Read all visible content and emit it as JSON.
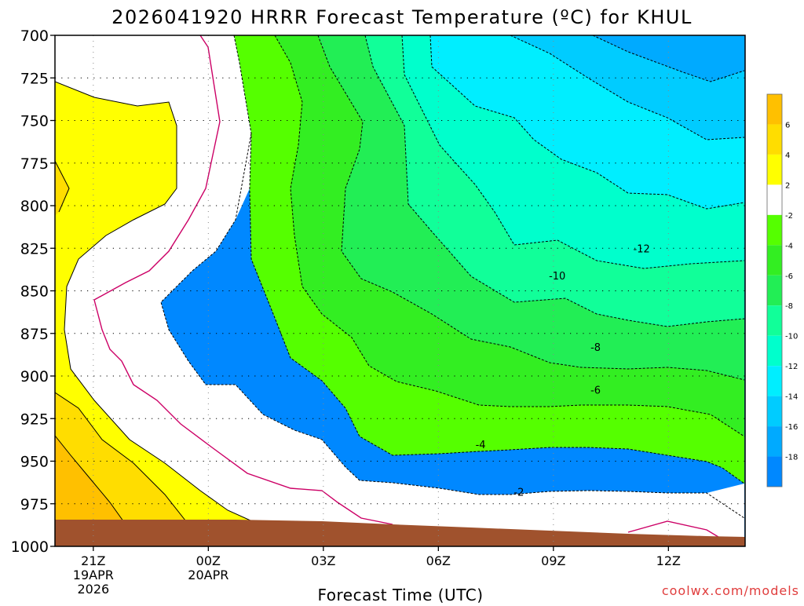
{
  "chart_data": {
    "type": "filled-contour",
    "title": "2026041920 HRRR Forecast Temperature (ºC) for KHUL",
    "xlabel": "Forecast Time (UTC)",
    "ylabel": "",
    "x_ticks": [
      {
        "label": "21Z",
        "sub": [
          "19APR",
          "2026"
        ],
        "hour": 1
      },
      {
        "label": "00Z",
        "sub": [
          "20APR"
        ],
        "hour": 4
      },
      {
        "label": "03Z",
        "sub": [],
        "hour": 7
      },
      {
        "label": "06Z",
        "sub": [],
        "hour": 10
      },
      {
        "label": "09Z",
        "sub": [],
        "hour": 13
      },
      {
        "label": "12Z",
        "sub": [],
        "hour": 16
      }
    ],
    "xlim": [
      0,
      18
    ],
    "y_ticks": [
      700,
      725,
      750,
      775,
      800,
      825,
      850,
      875,
      900,
      925,
      950,
      975,
      1000
    ],
    "ylim": [
      700,
      1000
    ],
    "y_reversed": true,
    "grid": true,
    "legend": "right",
    "colorbar": [
      {
        "label": "6",
        "color": "#ffc000"
      },
      {
        "label": "4",
        "color": "#ffdd00"
      },
      {
        "label": "2",
        "color": "#ffff00"
      },
      {
        "label": "-2",
        "color": "#ffffff"
      },
      {
        "label": "-4",
        "color": "#55ff00"
      },
      {
        "label": "-6",
        "color": "#33ee22"
      },
      {
        "label": "-8",
        "color": "#22ee55"
      },
      {
        "label": "-10",
        "color": "#11ff99"
      },
      {
        "label": "-12",
        "color": "#00ffcc"
      },
      {
        "label": "-14",
        "color": "#00eeff"
      },
      {
        "label": "-16",
        "color": "#00ccff"
      },
      {
        "label": "-18",
        "color": "#00aaff"
      },
      {
        "label": "",
        "color": "#0088ff"
      }
    ],
    "contour_labels": [
      {
        "text": "-12",
        "hour": 15.3,
        "p": 825
      },
      {
        "text": "-10",
        "hour": 13.1,
        "p": 841
      },
      {
        "text": "-8",
        "hour": 14.1,
        "p": 883
      },
      {
        "text": "-6",
        "hour": 14.1,
        "p": 908
      },
      {
        "text": "-4",
        "hour": 11.1,
        "p": 940
      },
      {
        "text": "-2",
        "hour": 12.1,
        "p": 968
      }
    ],
    "ground_color": "#a0522d"
  },
  "credit": "coolwx.com/models"
}
